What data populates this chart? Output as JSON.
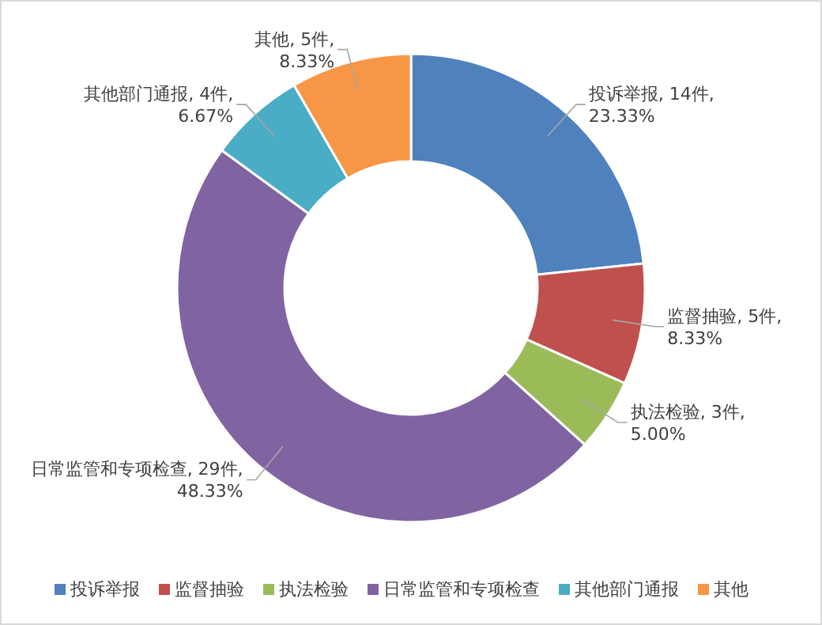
{
  "chart_data": {
    "type": "donut",
    "categories": [
      "投诉举报",
      "监督抽验",
      "执法检验",
      "日常监管和专项检查",
      "其他部门通报",
      "其他"
    ],
    "values": [
      14,
      5,
      3,
      29,
      4,
      5
    ],
    "colors": [
      "#4f81bd",
      "#c0504d",
      "#9bbb59",
      "#8064a2",
      "#4bacc6",
      "#f79646"
    ],
    "value_labels": [
      "投诉举报, 14件, 23.33%",
      "监督抽验, 5件, 8.33%",
      "执法检验, 3件, 5.00%",
      "日常监管和专项检查, 29件, 48.33%",
      "其他部门通报, 4件, 6.67%",
      "其他, 5件, 8.33%"
    ],
    "legend": "bottom"
  }
}
